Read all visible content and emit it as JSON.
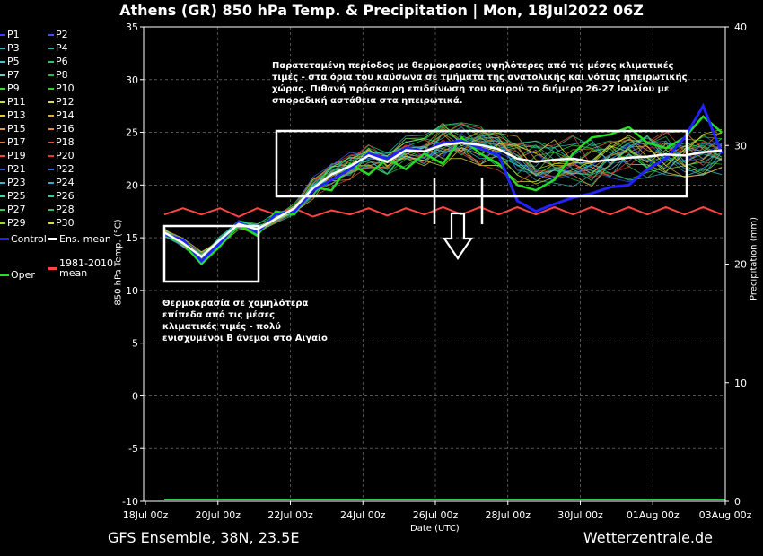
{
  "chart_data": {
    "type": "line",
    "title": "Athens  (GR)  850 hPa Temp. & Precipitation | Mon, 18Jul2022 06Z",
    "xlabel": "Date (UTC)",
    "ylabel": "850 hPa Temp. (°C)",
    "y2label": "Precipitation (mm)",
    "ylim": [
      -10,
      35
    ],
    "y2lim": [
      0,
      40
    ],
    "yticks": [
      "35",
      "30",
      "25",
      "20",
      "15",
      "10",
      "5",
      "0",
      "-5",
      "-10"
    ],
    "y2ticks": [
      "40",
      "30",
      "20",
      "10",
      "0"
    ],
    "xticks": [
      "18Jul 00z",
      "20Jul 00z",
      "22Jul 00z",
      "24Jul 00z",
      "26Jul 00z",
      "28Jul 00z",
      "30Jul 00z",
      "01Aug 00z",
      "03Aug 00z"
    ],
    "grid": true,
    "legend_position": "left",
    "ens_members": [
      "P1",
      "P2",
      "P3",
      "P4",
      "P5",
      "P6",
      "P7",
      "P8",
      "P9",
      "P10",
      "P11",
      "P12",
      "P13",
      "P14",
      "P15",
      "P16",
      "P17",
      "P18",
      "P19",
      "P20",
      "P21",
      "P22",
      "P23",
      "P24",
      "P25",
      "P26",
      "P27",
      "P28",
      "P29",
      "P30"
    ],
    "series": [
      {
        "name": "Ens. mean",
        "color": "#ffffff",
        "values": [
          15.5,
          14.5,
          13.2,
          14.8,
          16.3,
          15.8,
          16.8,
          17.8,
          19.7,
          21,
          21.8,
          22.8,
          22.2,
          23.3,
          23.2,
          23.8,
          24,
          23.8,
          23.4,
          22.5,
          22.2,
          22.4,
          22.5,
          22.2,
          22.4,
          22.6,
          22.7,
          22.9,
          22.8,
          23.1,
          23.3
        ]
      },
      {
        "name": "Control",
        "color": "#2222ff",
        "values": [
          15.3,
          14.8,
          12.8,
          14.5,
          16.5,
          15.5,
          17.2,
          17.5,
          19.5,
          20.5,
          21.5,
          23,
          22.5,
          23.5,
          23.2,
          24,
          24.2,
          23.5,
          22.8,
          18.5,
          17.5,
          18.2,
          18.8,
          19.2,
          19.8,
          20,
          21.5,
          22.5,
          24.5,
          27.5,
          23
        ]
      },
      {
        "name": "Oper",
        "color": "#22dd22",
        "values": [
          15.3,
          14.5,
          12.5,
          14.2,
          16.2,
          15.2,
          17.5,
          17.2,
          19.8,
          19.5,
          22,
          21,
          22.5,
          21.5,
          23,
          22,
          24.5,
          23,
          22,
          20,
          19.5,
          20.5,
          23,
          24.5,
          24.8,
          25.5,
          24,
          23.5,
          24.5,
          26.5,
          25
        ]
      },
      {
        "name": "1981-2010 mean",
        "color": "#ff4444",
        "values": [
          17.2,
          17.8,
          17.2,
          17.8,
          17,
          17.8,
          17.2,
          17.8,
          17,
          17.6,
          17.2,
          17.8,
          17.1,
          17.8,
          17.2,
          17.9,
          17.2,
          17.9,
          17.2,
          17.9,
          17.2,
          17.9,
          17.2,
          17.9,
          17.2,
          17.9,
          17.2,
          17.9,
          17.2,
          17.9,
          17.2
        ]
      }
    ],
    "annotations": [
      "Παρατεταμένη περίοδος με θερμοκρασίες υψηλότερες από τις μέσες κλιματικές τιμές - στα όρια του καύσωνα σε τμήματα της ανατολικής και νότιας ηπειρωτικής χώρας. Πιθανή πρόσκαιρη επιδείνωση του καιρού το διήμερο 26-27 Ιουλίου με σποραδική αστάθεια στα ηπειρωτικά.",
      "Θερμοκρασία σε χαμηλότερα επίπεδα από τις μέσες κλιματικές τιμές - πολύ ενισχυμένοι Β άνεμοι στο Αιγαίο"
    ]
  },
  "footer": {
    "left": "GFS Ensemble, 38N, 23.5E",
    "right": "Wetterzentrale.de"
  }
}
